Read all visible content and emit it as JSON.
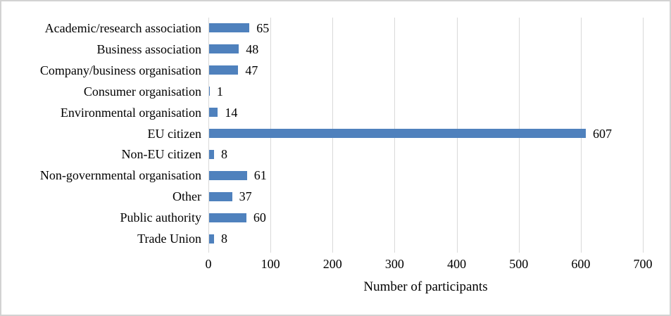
{
  "figure": {
    "background": "#ffffff",
    "border_color": "#d2d2d2"
  },
  "chart_data": {
    "type": "bar",
    "orientation": "horizontal",
    "categories": [
      "Academic/research association",
      "Business association",
      "Company/business organisation",
      "Consumer organisation",
      "Environmental organisation",
      "EU citizen",
      "Non-EU citizen",
      "Non-governmental organisation",
      "Other",
      "Public authority",
      "Trade Union"
    ],
    "values": [
      65,
      48,
      47,
      1,
      14,
      607,
      8,
      61,
      37,
      60,
      8
    ],
    "title": "",
    "xlabel": "Number of participants",
    "ylabel": "",
    "xlim": [
      0,
      700
    ],
    "xticks": [
      0,
      100,
      200,
      300,
      400,
      500,
      600,
      700
    ],
    "grid": "vertical",
    "legend": "none",
    "data_labels": true,
    "bar_color": "#4f81bd",
    "gridline_color": "#d9d9d9",
    "text_color": "#000000"
  }
}
